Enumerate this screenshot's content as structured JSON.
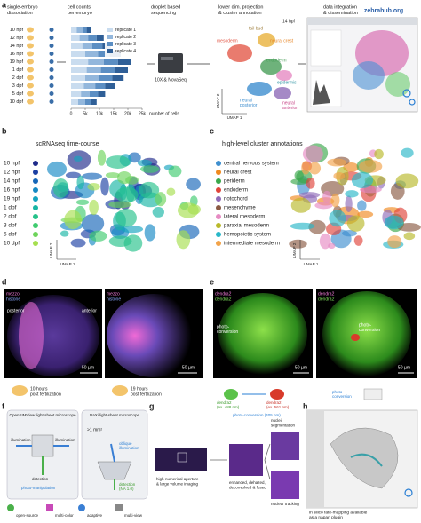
{
  "panels": {
    "a": {
      "label": "a",
      "steps": [
        [
          "single-embryo",
          "dissociation"
        ],
        [
          "cell counts",
          "per embryo"
        ],
        [
          "droplet based",
          "sequencing"
        ],
        [
          "lower dim. projection",
          "& cluster annotation"
        ],
        [
          "data integration",
          "& dissemination"
        ]
      ],
      "chart": {
        "type": "bar",
        "orientation": "horizontal",
        "stacked": true,
        "categories": [
          "10 hpf",
          "12 hpf",
          "14 hpf",
          "16 hpf",
          "19 hpf",
          "1 dpf",
          "2 dpf",
          "3 dpf",
          "5 dpf",
          "10 dpf"
        ],
        "series": [
          {
            "name": "replicate 1",
            "color": "#c9dcef",
            "values": [
              2000,
              3000,
              4000,
              5000,
              6000,
              5500,
              5000,
              4500,
              3500,
              2500
            ]
          },
          {
            "name": "replicate 2",
            "color": "#93b7dc",
            "values": [
              2000,
              3000,
              3500,
              4500,
              5500,
              5000,
              5000,
              4000,
              3000,
              2500
            ]
          },
          {
            "name": "replicate 3",
            "color": "#5b8ec3",
            "values": [
              1500,
              3000,
              3500,
              4000,
              5000,
              5000,
              4500,
              3500,
              3000,
              2000
            ]
          },
          {
            "name": "replicate 4",
            "color": "#2f5f97",
            "values": [
              1500,
              2500,
              3000,
              4000,
              4500,
              4500,
              4000,
              3500,
              2500,
              2000
            ]
          }
        ],
        "xlim": [
          0,
          25000
        ],
        "xticks": [
          0,
          {
            "value": 5000,
            "label": "5k"
          },
          {
            "value": 10000,
            "label": "10k"
          },
          {
            "value": 15000,
            "label": "15k"
          },
          {
            "value": 20000,
            "label": "20k"
          },
          {
            "value": 25000,
            "label": "25k"
          }
        ],
        "xlabel": "number of cells"
      },
      "sequencer": "10X & NovaSeq",
      "umap_labels": [
        "mesoderm",
        "tail bud",
        "neural crest",
        "14 hpf",
        "endoderm",
        "epidermis",
        [
          "neural",
          "posterior"
        ],
        [
          "neural",
          "anterior"
        ]
      ],
      "umap_x": "UMAP 1",
      "umap_y": "UMAP 2",
      "site": "zebrahub.org"
    },
    "b": {
      "label": "b",
      "title": "scRNAseq time-course",
      "timepoints": [
        {
          "label": "10 hpf",
          "color": "#1f2a8a"
        },
        {
          "label": "12 hpf",
          "color": "#1c3fa3"
        },
        {
          "label": "14 hpf",
          "color": "#1666b8"
        },
        {
          "label": "16 hpf",
          "color": "#1689c4"
        },
        {
          "label": "19 hpf",
          "color": "#14a3bf"
        },
        {
          "label": "1 dpf",
          "color": "#17b5a4"
        },
        {
          "label": "2 dpf",
          "color": "#25c28a"
        },
        {
          "label": "3 dpf",
          "color": "#3fcb6f"
        },
        {
          "label": "5 dpf",
          "color": "#6dd45a"
        },
        {
          "label": "10 dpf",
          "color": "#a6df4f"
        }
      ],
      "umap_x": "UMAP 1",
      "umap_y": "UMAP 2"
    },
    "c": {
      "label": "c",
      "title": "high-level cluster annotations",
      "clusters": [
        {
          "label": "central nervous system",
          "color": "#3f8fcf"
        },
        {
          "label": "neural crest",
          "color": "#f0891e"
        },
        {
          "label": "periderm",
          "color": "#3aa84b"
        },
        {
          "label": "endoderm",
          "color": "#e0443a"
        },
        {
          "label": "notochord",
          "color": "#8f6bb8"
        },
        {
          "label": "mesenchyme",
          "color": "#8a5a44"
        },
        {
          "label": "lateral mesoderm",
          "color": "#e68bc3"
        },
        {
          "label": "paraxial mesoderm",
          "color": "#b9b92a"
        },
        {
          "label": "hemopoietic system",
          "color": "#29b7c8"
        },
        {
          "label": "intermediate mesoderm",
          "color": "#f2a34a"
        }
      ],
      "umap_x": "UMAP 1",
      "umap_y": "UMAP 2"
    },
    "d": {
      "label": "d",
      "channels": [
        "mezzo",
        "histone"
      ],
      "posterior": "posterior",
      "anterior": "anterior",
      "scale": "50 µm",
      "stages": [
        [
          "10 hours",
          "post fertilization"
        ],
        [
          "19 hours",
          "post fertilization"
        ]
      ]
    },
    "e": {
      "label": "e",
      "channel": "dendra2",
      "photoconversion": [
        "photo-",
        "conversion"
      ],
      "scale": "50 µm",
      "legend": [
        [
          "dendra2",
          "(ex. 488 nm)"
        ],
        [
          "dendra2",
          "(ex. 561 nm)"
        ],
        "photo-conversion (405 nm)",
        [
          "photo-",
          "conversion"
        ]
      ]
    },
    "f": {
      "label": "f",
      "microscopes": [
        "OpenSIMView light-sheet microscope",
        "DaXi light-sheet microscope"
      ],
      "illumination": "illumination",
      "detection": "detection",
      "photomanipulation": "photo-manipulation",
      "area": ">1 mm²",
      "oblique": [
        "oblique",
        "illumination"
      ],
      "daxi_detection": [
        "detection",
        "(NA 1.0)"
      ],
      "features": [
        "open-source",
        "multi-color",
        "adaptive",
        "multi-view"
      ]
    },
    "g": {
      "label": "g",
      "steps": [
        [
          "high-numerical aperture",
          "& large volume imaging"
        ],
        [
          "enhanced, dehazed,",
          "deconvolved & fused"
        ]
      ],
      "outputs": [
        [
          "nuclei",
          "segmentation"
        ],
        "nuclear tracking"
      ]
    },
    "h": {
      "label": "h",
      "caption": [
        "in silico fate-mapping available",
        "as a napari plugin"
      ]
    }
  }
}
